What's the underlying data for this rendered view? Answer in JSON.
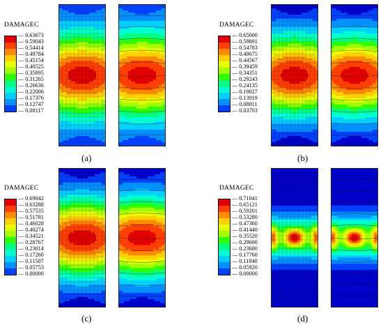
{
  "legend_title": "DAMAGEC",
  "colors": [
    "#0000c8",
    "#0040ff",
    "#0090ff",
    "#00d0ff",
    "#00ffd0",
    "#00ff80",
    "#30ff00",
    "#a0ff00",
    "#e6ff00",
    "#ffd000",
    "#ff8a00",
    "#ff4000",
    "#e00000"
  ],
  "panels": [
    {
      "caption": "(a)",
      "legend_values": [
        "0.63673",
        "0.59043",
        "0.54414",
        "0.49784",
        "0.45154",
        "0.40525",
        "0.35895",
        "0.31265",
        "0.26636",
        "0.22006",
        "0.17376",
        "0.12747",
        "0.08117"
      ],
      "max_level": 12,
      "min_level": 1,
      "type": "smooth"
    },
    {
      "caption": "(b)",
      "legend_values": [
        "0.65000",
        "0.59891",
        "0.54783",
        "0.49675",
        "0.44567",
        "0.39459",
        "0.34351",
        "0.29243",
        "0.24135",
        "0.19027",
        "0.13919",
        "0.08811",
        "0.03703"
      ],
      "max_level": 12,
      "min_level": 0,
      "type": "smooth"
    },
    {
      "caption": "(c)",
      "legend_values": [
        "0.69042",
        "0.63288",
        "0.57535",
        "0.51781",
        "0.46028",
        "0.40274",
        "0.34521",
        "0.28767",
        "0.23014",
        "0.17260",
        "0.11507",
        "0.05753",
        "0.00000"
      ],
      "max_level": 12,
      "min_level": 0,
      "type": "smooth"
    },
    {
      "caption": "(d)",
      "legend_values": [
        "0.71041",
        "0.65121",
        "0.59201",
        "0.53280",
        "0.47360",
        "0.41440",
        "0.35520",
        "0.29600",
        "0.23680",
        "0.17760",
        "0.11840",
        "0.05920",
        "0.00000"
      ],
      "max_level": 12,
      "min_level": 0,
      "type": "localized"
    }
  ]
}
